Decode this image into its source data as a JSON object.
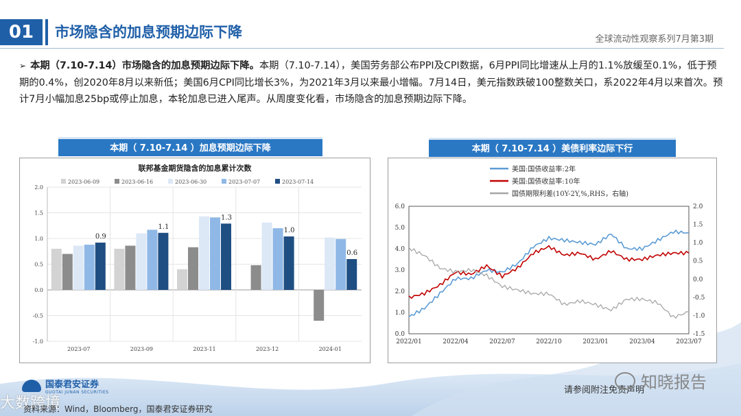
{
  "header": {
    "section_number": "01",
    "title": "市场隐含的加息预期边际下降",
    "series_label": "全球流动性观察系列7月第3期"
  },
  "body": {
    "bullet": "➢",
    "lead": "本期（7.10-7.14）市场隐含的加息预期边际下降。",
    "text": "本期（7.10-7.14），美国劳务部公布PPI及CPI数据，6月PPI同比增速从上月的1.1%放缓至0.1%，低于预期的0.4%，创2020年8月以来新低；美国6月CPI同比增长3%，为2021年3月以来最小增幅。7月14日，美元指数跌破100整数关口，系2022年4月以来首次。预计7月小幅加息25bp或停止加息，本轮加息已进入尾声。从周度变化看，市场隐含的加息预期边际下降。"
  },
  "panels": {
    "left_title": "本期（ 7.10-7.14 ）加息预期边际下降",
    "right_title": "本期（ 7.10-7.14 ）美债利率边际下行"
  },
  "footer": {
    "source": "资料来源：Wind，Bloomberg，国泰君安证券研究",
    "ref_note": "请参阅附注免责声明",
    "logo_cn": "国泰君安证券",
    "logo_en": "GUOTAI JUNAN SECURITIES",
    "watermark_left": "大数跨境",
    "watermark_right": "知晓报告"
  },
  "colors": {
    "brand_blue": "#1f5fa8",
    "panel_head": "#2a78c4"
  },
  "chart_data": [
    {
      "type": "bar",
      "title": "联邦基金期货隐含的加息累计次数",
      "categories": [
        "2023-07",
        "2023-09",
        "2023-11",
        "2023-12",
        "2024-01"
      ],
      "series": [
        {
          "name": "2023-06-09",
          "color": "#d3d3d3",
          "values": [
            0.8,
            0.8,
            0.4,
            0.0,
            0.0
          ]
        },
        {
          "name": "2023-06-16",
          "color": "#8c8c8c",
          "values": [
            0.7,
            0.86,
            0.83,
            0.48,
            -0.6
          ]
        },
        {
          "name": "2023-06-30",
          "color": "#dce8f6",
          "values": [
            0.86,
            1.1,
            1.43,
            1.31,
            1.02
          ]
        },
        {
          "name": "2023-07-07",
          "color": "#8fb8e6",
          "values": [
            0.88,
            1.17,
            1.41,
            1.2,
            0.99
          ]
        },
        {
          "name": "2023-07-14",
          "color": "#1f4e82",
          "values": [
            0.92,
            1.11,
            1.29,
            1.04,
            0.6
          ]
        }
      ],
      "data_labels": [
        "0.9",
        "1.1",
        "1.3",
        "1.0",
        "0.6"
      ],
      "ylim": [
        -1.0,
        2.0
      ],
      "yticks": [
        "2.0",
        "1.5",
        "1.0",
        "0.5",
        "0.0",
        "-0.5",
        "-1.0"
      ],
      "legend": "top",
      "grid": true
    },
    {
      "type": "line",
      "x_ticks": [
        "2022/01",
        "2022/04",
        "2022/07",
        "2022/10",
        "2023/01",
        "2023/04",
        "2023/07"
      ],
      "y_left_ticks": [
        "6.0",
        "5.0",
        "4.0",
        "3.0",
        "2.0",
        "1.0",
        "0.0"
      ],
      "y_right_ticks": [
        "2.0",
        "1.5",
        "1.0",
        "0.5",
        "0.0",
        "-0.5",
        "-1.0",
        "-1.5"
      ],
      "ylim_left": [
        0,
        6
      ],
      "ylim_right": [
        -1.5,
        2.0
      ],
      "legend": "top-left",
      "series": [
        {
          "name": "美国:国债收益率:2年",
          "color": "#5b9bd5",
          "axis": "left",
          "x": [
            "2022-01",
            "2022-02",
            "2022-03",
            "2022-04",
            "2022-05",
            "2022-06",
            "2022-07",
            "2022-08",
            "2022-09",
            "2022-10",
            "2022-11",
            "2022-12",
            "2023-01",
            "2023-02",
            "2023-03",
            "2023-04",
            "2023-05",
            "2023-06",
            "2023-07"
          ],
          "values": [
            0.8,
            1.2,
            1.9,
            2.6,
            2.6,
            3.0,
            2.9,
            3.3,
            4.1,
            4.5,
            4.4,
            4.3,
            4.2,
            4.7,
            4.0,
            4.0,
            4.4,
            4.8,
            4.75
          ]
        },
        {
          "name": "美国:国债收益率:10年",
          "color": "#c00000",
          "axis": "left",
          "x": [
            "2022-01",
            "2022-02",
            "2022-03",
            "2022-04",
            "2022-05",
            "2022-06",
            "2022-07",
            "2022-08",
            "2022-09",
            "2022-10",
            "2022-11",
            "2022-12",
            "2023-01",
            "2023-02",
            "2023-03",
            "2023-04",
            "2023-05",
            "2023-06",
            "2023-07"
          ],
          "values": [
            1.7,
            1.9,
            2.3,
            2.9,
            2.8,
            3.2,
            2.7,
            3.1,
            3.8,
            4.1,
            3.7,
            3.8,
            3.5,
            3.9,
            3.5,
            3.5,
            3.7,
            3.8,
            3.8
          ]
        },
        {
          "name": "国债期限利差(10Y-2Y,%,RHS，右轴)",
          "color": "#a6a6a6",
          "axis": "right",
          "x": [
            "2022-01",
            "2022-02",
            "2022-03",
            "2022-04",
            "2022-05",
            "2022-06",
            "2022-07",
            "2022-08",
            "2022-09",
            "2022-10",
            "2022-11",
            "2022-12",
            "2023-01",
            "2023-02",
            "2023-03",
            "2023-04",
            "2023-05",
            "2023-06",
            "2023-07"
          ],
          "values": [
            0.85,
            0.65,
            0.3,
            0.2,
            0.25,
            0.1,
            -0.2,
            -0.3,
            -0.4,
            -0.4,
            -0.7,
            -0.6,
            -0.7,
            -0.85,
            -0.55,
            -0.55,
            -0.65,
            -1.05,
            -0.9
          ]
        }
      ]
    }
  ]
}
